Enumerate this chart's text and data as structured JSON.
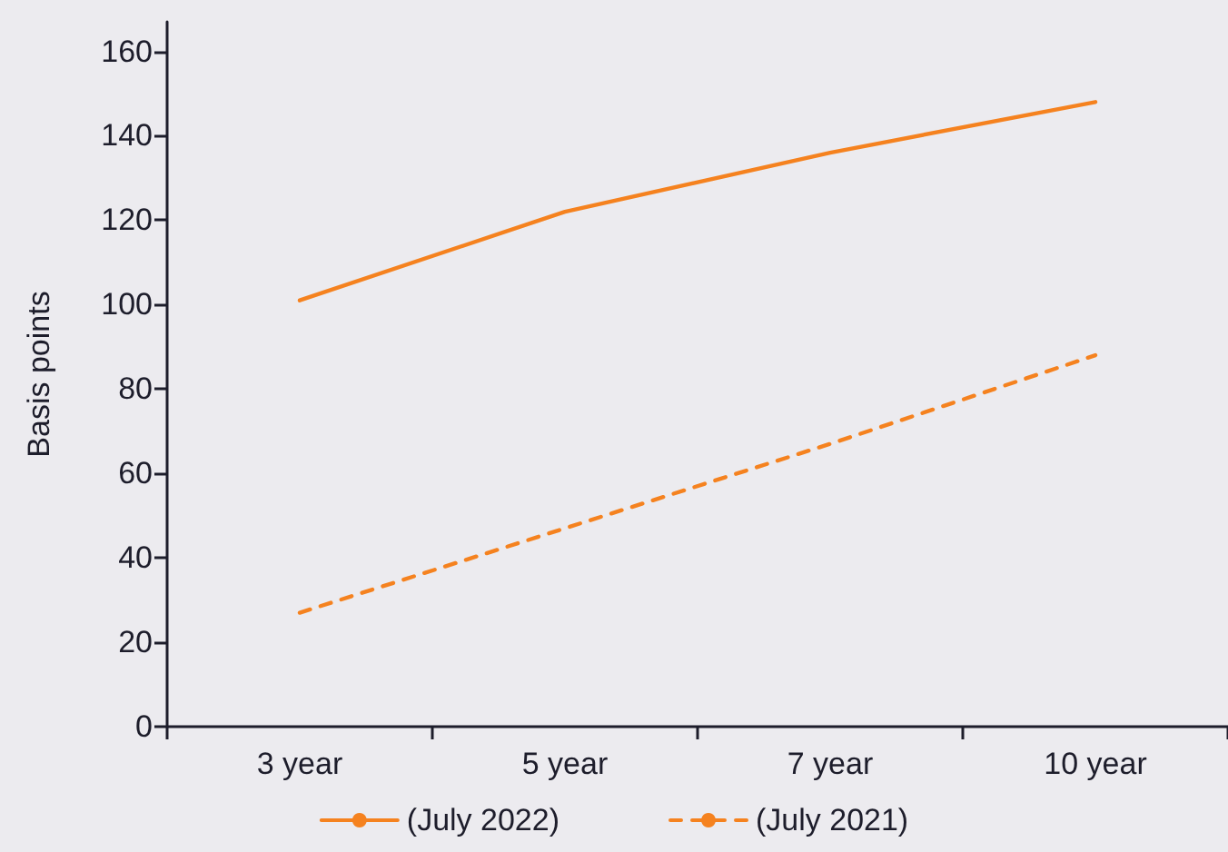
{
  "chart_data": {
    "type": "line",
    "ylabel": "Basis points",
    "categories": [
      "3 year",
      "5 year",
      "7 year",
      "10 year"
    ],
    "series": [
      {
        "name": "(July 2022)",
        "color": "#f5821f",
        "line_style": "solid",
        "values": [
          101,
          122,
          136,
          148
        ]
      },
      {
        "name": "(July 2021)",
        "color": "#f5821f",
        "line_style": "dashed",
        "values": [
          27,
          47,
          67,
          88
        ]
      }
    ],
    "ylim": [
      0,
      167
    ],
    "yticks": [
      0,
      20,
      40,
      60,
      80,
      100,
      120,
      140,
      160
    ],
    "grid": false,
    "legend": "bottom",
    "marker": "none"
  }
}
